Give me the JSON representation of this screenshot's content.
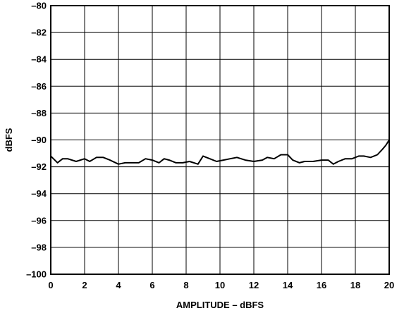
{
  "chart_data": {
    "type": "line",
    "xlabel": "AMPLITUDE – dBFS",
    "ylabel": "dBFS",
    "xlim": [
      0,
      20
    ],
    "ylim": [
      -100,
      -80
    ],
    "x_ticks": [
      "0",
      "2",
      "4",
      "6",
      "8",
      "10",
      "12",
      "14",
      "16",
      "18",
      "20"
    ],
    "y_ticks": [
      "–80",
      "–82",
      "–84",
      "–86",
      "–88",
      "–90",
      "–92",
      "–94",
      "–96",
      "–98",
      "–100"
    ],
    "grid": true,
    "series": [
      {
        "color": "#000000",
        "x": [
          0,
          0.4,
          0.7,
          1.0,
          1.5,
          2.0,
          2.3,
          2.7,
          3.1,
          3.5,
          4.0,
          4.4,
          4.8,
          5.2,
          5.6,
          6.0,
          6.4,
          6.7,
          7.0,
          7.4,
          7.8,
          8.2,
          8.7,
          9.0,
          9.4,
          9.8,
          10.2,
          10.6,
          11.0,
          11.5,
          12.0,
          12.5,
          12.8,
          13.2,
          13.6,
          14.0,
          14.3,
          14.7,
          15.0,
          15.5,
          16.0,
          16.4,
          16.7,
          17.0,
          17.4,
          17.8,
          18.2,
          18.5,
          18.9,
          19.3,
          19.6,
          19.8,
          20.0
        ],
        "y": [
          -91.2,
          -91.7,
          -91.4,
          -91.4,
          -91.6,
          -91.4,
          -91.6,
          -91.3,
          -91.3,
          -91.5,
          -91.8,
          -91.7,
          -91.7,
          -91.7,
          -91.4,
          -91.5,
          -91.7,
          -91.4,
          -91.5,
          -91.7,
          -91.7,
          -91.6,
          -91.8,
          -91.2,
          -91.4,
          -91.6,
          -91.5,
          -91.4,
          -91.3,
          -91.5,
          -91.6,
          -91.5,
          -91.3,
          -91.4,
          -91.1,
          -91.1,
          -91.5,
          -91.7,
          -91.6,
          -91.6,
          -91.5,
          -91.5,
          -91.8,
          -91.6,
          -91.4,
          -91.4,
          -91.2,
          -91.2,
          -91.3,
          -91.1,
          -90.7,
          -90.4,
          -90.0
        ]
      }
    ]
  }
}
